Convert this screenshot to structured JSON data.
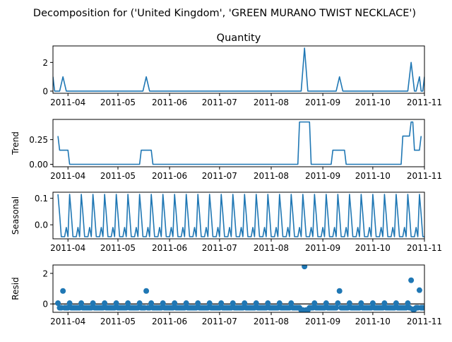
{
  "figure_title": "Decomposition for ('United Kingdom', 'GREEN MURANO TWIST NECKLACE')",
  "colors": {
    "series": "#1f77b4",
    "axis": "#000000",
    "baseline": "#000000"
  },
  "chart_data": [
    {
      "type": "line",
      "title": "Quantity",
      "ylabel": "",
      "xlim": [
        "2011-03-23",
        "2011-11-01"
      ],
      "ylim": [
        -0.15,
        3.15
      ],
      "yticks": [
        0,
        2
      ],
      "xticks": [
        "2011-04",
        "2011-05",
        "2011-06",
        "2011-07",
        "2011-08",
        "2011-09",
        "2011-10",
        "2011-11"
      ],
      "series": [
        {
          "points": [
            [
              "2011-03-23",
              1
            ],
            [
              "2011-03-24",
              0
            ],
            [
              "2011-03-27",
              0
            ],
            [
              "2011-03-29",
              1
            ],
            [
              "2011-03-31",
              0
            ],
            [
              "2011-05-16",
              0
            ],
            [
              "2011-05-18",
              1
            ],
            [
              "2011-05-20",
              0
            ],
            [
              "2011-08-19",
              0
            ],
            [
              "2011-08-21",
              3
            ],
            [
              "2011-08-23",
              0
            ],
            [
              "2011-09-09",
              0
            ],
            [
              "2011-09-11",
              1
            ],
            [
              "2011-09-13",
              0
            ],
            [
              "2011-10-22",
              0
            ],
            [
              "2011-10-24",
              2
            ],
            [
              "2011-10-26",
              0
            ],
            [
              "2011-10-27",
              0
            ],
            [
              "2011-10-29",
              1
            ],
            [
              "2011-10-30",
              0
            ],
            [
              "2011-10-31",
              0
            ],
            [
              "2011-11-01",
              1
            ]
          ]
        }
      ]
    },
    {
      "type": "line",
      "title": "",
      "ylabel": "Trend",
      "xlim": [
        "2011-03-23",
        "2011-11-01"
      ],
      "ylim": [
        -0.025,
        0.455
      ],
      "yticks": [
        0.0,
        0.25
      ],
      "ytick_labels": [
        "0.00",
        "0.25"
      ],
      "xticks": [
        "2011-04",
        "2011-05",
        "2011-06",
        "2011-07",
        "2011-08",
        "2011-09",
        "2011-10",
        "2011-11"
      ],
      "series": [
        {
          "points": [
            [
              "2011-03-26",
              0.286
            ],
            [
              "2011-03-27",
              0.143
            ],
            [
              "2011-04-01",
              0.143
            ],
            [
              "2011-04-02",
              0
            ],
            [
              "2011-05-14",
              0
            ],
            [
              "2011-05-15",
              0.143
            ],
            [
              "2011-05-21",
              0.143
            ],
            [
              "2011-05-22",
              0
            ],
            [
              "2011-08-17",
              0
            ],
            [
              "2011-08-18",
              0.429
            ],
            [
              "2011-08-24",
              0.429
            ],
            [
              "2011-08-25",
              0
            ],
            [
              "2011-09-06",
              0
            ],
            [
              "2011-09-07",
              0.143
            ],
            [
              "2011-09-14",
              0.143
            ],
            [
              "2011-09-15",
              0
            ],
            [
              "2011-10-18",
              0
            ],
            [
              "2011-10-19",
              0.286
            ],
            [
              "2011-10-23",
              0.286
            ],
            [
              "2011-10-24",
              0.429
            ],
            [
              "2011-10-25",
              0.429
            ],
            [
              "2011-10-26",
              0.143
            ],
            [
              "2011-10-29",
              0.143
            ],
            [
              "2011-10-30",
              0.286
            ]
          ]
        }
      ]
    },
    {
      "type": "line",
      "title": "",
      "ylabel": "Seasonal",
      "xlim": [
        "2011-03-23",
        "2011-11-01"
      ],
      "ylim": [
        -0.053,
        0.123
      ],
      "yticks": [
        0.0,
        0.1
      ],
      "ytick_labels": [
        "0.0",
        "0.1"
      ],
      "xticks": [
        "2011-04",
        "2011-05",
        "2011-06",
        "2011-07",
        "2011-08",
        "2011-09",
        "2011-10",
        "2011-11"
      ],
      "period_days": 7,
      "weekly_pattern": [
        0.115,
        0.04,
        -0.045,
        -0.045,
        -0.045,
        -0.01,
        -0.045
      ],
      "series_start": "2011-03-26",
      "series_end": "2011-11-01"
    },
    {
      "type": "scatter",
      "title": "",
      "ylabel": "Resid",
      "xlim": [
        "2011-03-23",
        "2011-11-01"
      ],
      "ylim": [
        -0.55,
        2.55
      ],
      "yticks": [
        0,
        2
      ],
      "xticks": [
        "2011-04",
        "2011-05",
        "2011-06",
        "2011-07",
        "2011-08",
        "2011-09",
        "2011-10",
        "2011-11"
      ],
      "baseline": 0,
      "regular_points": {
        "start": "2011-03-26",
        "end": "2011-11-01",
        "step_days": 1,
        "low_value": -0.25,
        "high_value": 0.05,
        "high_period": 7
      },
      "points": [
        [
          "2011-03-29",
          0.85
        ],
        [
          "2011-05-18",
          0.85
        ],
        [
          "2011-08-21",
          2.45
        ],
        [
          "2011-09-11",
          0.85
        ],
        [
          "2011-10-24",
          1.55
        ],
        [
          "2011-10-29",
          0.9
        ],
        [
          "2011-08-19",
          -0.4
        ],
        [
          "2011-08-20",
          -0.4
        ],
        [
          "2011-08-22",
          -0.4
        ],
        [
          "2011-08-23",
          -0.4
        ],
        [
          "2011-10-25",
          -0.35
        ],
        [
          "2011-10-26",
          -0.35
        ]
      ]
    }
  ]
}
